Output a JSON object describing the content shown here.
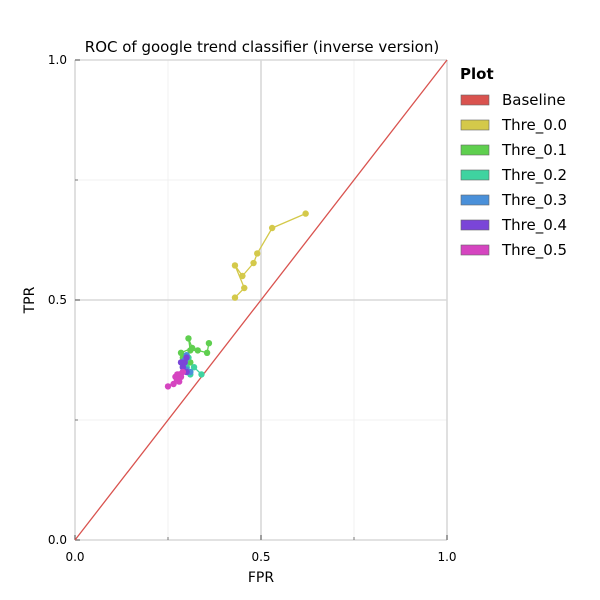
{
  "chart_data": {
    "type": "line",
    "title": "ROC of google trend classifier (inverse version)",
    "xlabel": "FPR",
    "ylabel": "TPR",
    "xlim": [
      0,
      1
    ],
    "ylim": [
      0,
      1
    ],
    "xticks": [
      {
        "value": 0.0,
        "label": "0.0"
      },
      {
        "value": 0.5,
        "label": "0.5"
      },
      {
        "value": 1.0,
        "label": "1.0"
      }
    ],
    "yticks": [
      {
        "value": 0.0,
        "label": "0.0"
      },
      {
        "value": 0.5,
        "label": "0.5"
      },
      {
        "value": 1.0,
        "label": "1.0"
      }
    ],
    "minor_ticks": [
      0.25,
      0.75
    ],
    "grid": true,
    "legend": {
      "title": "Plot",
      "position": "outside-right"
    },
    "series": [
      {
        "name": "Baseline",
        "color": "#d9534f",
        "markers": false,
        "x": [
          0,
          1
        ],
        "y": [
          0,
          1
        ]
      },
      {
        "name": "Thre_0.0",
        "color": "#d4c94a",
        "markers": true,
        "x": [
          0.62,
          0.53,
          0.49,
          0.48,
          0.45,
          0.43,
          0.455,
          0.43
        ],
        "y": [
          0.68,
          0.65,
          0.597,
          0.577,
          0.55,
          0.572,
          0.525,
          0.505
        ]
      },
      {
        "name": "Thre_0.1",
        "color": "#5fcf4f",
        "markers": true,
        "x": [
          0.36,
          0.355,
          0.33,
          0.31,
          0.305,
          0.315,
          0.285,
          0.29,
          0.3,
          0.31
        ],
        "y": [
          0.41,
          0.39,
          0.395,
          0.395,
          0.42,
          0.4,
          0.39,
          0.38,
          0.36,
          0.37
        ]
      },
      {
        "name": "Thre_0.2",
        "color": "#3fd3a0",
        "markers": true,
        "x": [
          0.34,
          0.32,
          0.31,
          0.3,
          0.305,
          0.295
        ],
        "y": [
          0.345,
          0.36,
          0.345,
          0.36,
          0.38,
          0.36
        ]
      },
      {
        "name": "Thre_0.3",
        "color": "#4a90d9",
        "markers": true,
        "x": [
          0.31,
          0.3,
          0.29,
          0.295,
          0.3
        ],
        "y": [
          0.35,
          0.355,
          0.36,
          0.375,
          0.385
        ]
      },
      {
        "name": "Thre_0.4",
        "color": "#7a45d8",
        "markers": true,
        "x": [
          0.3,
          0.29,
          0.29,
          0.285,
          0.295,
          0.3
        ],
        "y": [
          0.35,
          0.35,
          0.36,
          0.37,
          0.37,
          0.38
        ]
      },
      {
        "name": "Thre_0.5",
        "color": "#d545c0",
        "markers": true,
        "x": [
          0.25,
          0.265,
          0.27,
          0.275,
          0.28,
          0.285,
          0.29,
          0.28,
          0.275
        ],
        "y": [
          0.32,
          0.325,
          0.34,
          0.345,
          0.33,
          0.34,
          0.35,
          0.345,
          0.335
        ]
      }
    ]
  }
}
